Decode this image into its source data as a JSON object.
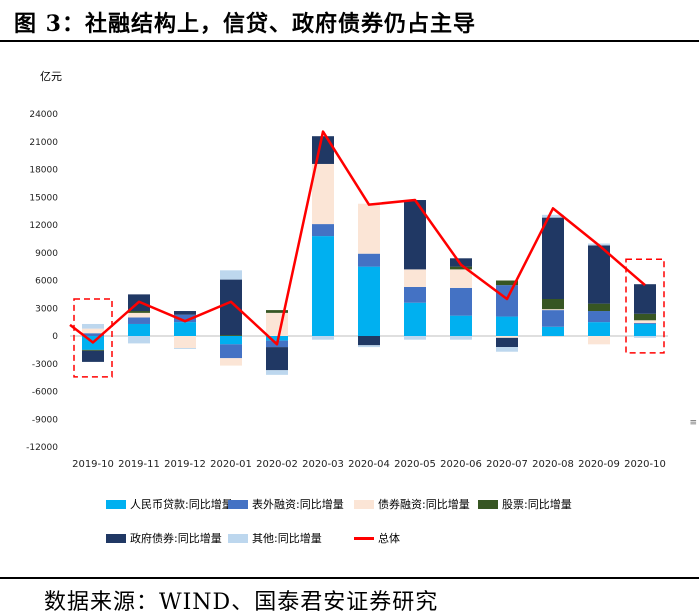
{
  "figure": {
    "title": "图 3：社融结构上，信贷、政府债券仍占主导",
    "source": "数据来源：WIND、国泰君安证券研究",
    "edge_mark": "≡"
  },
  "chart_data": {
    "type": "bar",
    "stacked": true,
    "ylabel": "亿元",
    "ylim": [
      -12000,
      24000
    ],
    "yticks": [
      -12000,
      -9000,
      -6000,
      -3000,
      0,
      3000,
      6000,
      9000,
      12000,
      15000,
      18000,
      21000,
      24000
    ],
    "categories": [
      "2019-10",
      "2019-11",
      "2019-12",
      "2020-01",
      "2020-02",
      "2020-03",
      "2020-04",
      "2020-05",
      "2020-06",
      "2020-07",
      "2020-08",
      "2020-09",
      "2020-10"
    ],
    "series": [
      {
        "name": "人民币贷款:同比增量",
        "color": "#00B0F0",
        "values": [
          -1500,
          1300,
          1500,
          -900,
          -500,
          10800,
          7500,
          3600,
          2200,
          2100,
          1000,
          1500,
          1300
        ]
      },
      {
        "name": "表外融资:同比增量",
        "color": "#4472C4",
        "values": [
          300,
          700,
          800,
          -1500,
          -700,
          1300,
          1400,
          1700,
          3000,
          3400,
          1800,
          1200,
          100
        ]
      },
      {
        "name": "债券融资:同比增量",
        "color": "#FBE5D6",
        "values": [
          500,
          500,
          -1300,
          -800,
          2500,
          6500,
          5400,
          1900,
          2000,
          -200,
          100,
          -900,
          300
        ]
      },
      {
        "name": "股票:同比增量",
        "color": "#375623",
        "values": [
          -100,
          200,
          0,
          100,
          300,
          0,
          0,
          0,
          300,
          500,
          1100,
          800,
          700
        ]
      },
      {
        "name": "政府债券:同比增量",
        "color": "#203864",
        "values": [
          -1200,
          1800,
          400,
          6000,
          -2500,
          3000,
          -1000,
          7500,
          900,
          -1000,
          8800,
          6300,
          3200
        ]
      },
      {
        "name": "其他:同比增量",
        "color": "#BDD7EE",
        "values": [
          500,
          -800,
          -100,
          1000,
          -500,
          -400,
          -200,
          -400,
          -400,
          -500,
          300,
          200,
          -200
        ]
      }
    ],
    "total": {
      "name": "总体",
      "color": "#FF0000",
      "values": [
        -700,
        3700,
        1600,
        3700,
        -900,
        22100,
        14200,
        14700,
        7700,
        4000,
        13800,
        9800,
        5500
      ]
    },
    "highlight_categories": [
      "2019-10",
      "2020-10"
    ],
    "legend_position": "bottom"
  }
}
